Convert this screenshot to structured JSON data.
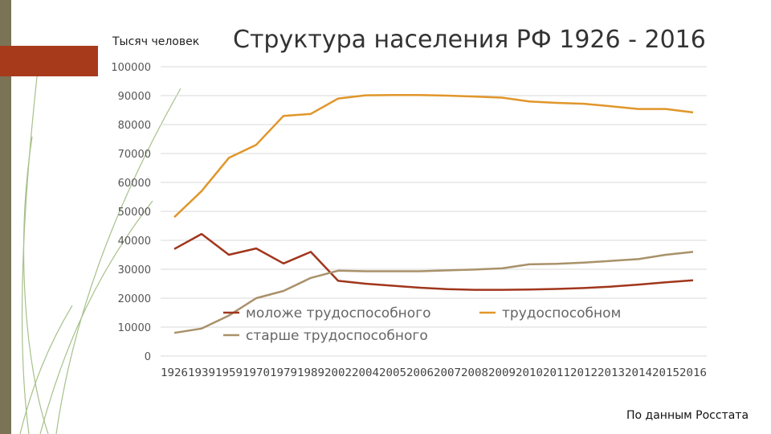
{
  "colors": {
    "sidebar": "#7a7355",
    "accent": "#a83a1c",
    "decor": "#a7c08a"
  },
  "unit_label": "Тысяч человек",
  "footer": {
    "source": "По данным Росстата"
  },
  "chart_data": {
    "type": "line",
    "title": "Структура населения РФ 1926 - 2016",
    "xlabel": "",
    "ylabel": "Тысяч человек",
    "categories": [
      "1926",
      "1939",
      "1959",
      "1970",
      "1979",
      "1989",
      "2002",
      "2004",
      "2005",
      "2006",
      "2007",
      "2008",
      "2009",
      "2010",
      "2011",
      "2012",
      "2013",
      "2014",
      "2015",
      "2016"
    ],
    "ylim": [
      0,
      100000
    ],
    "yticks": [
      0,
      10000,
      20000,
      30000,
      40000,
      50000,
      60000,
      70000,
      80000,
      90000,
      100000
    ],
    "grid": true,
    "legend_position": "bottom-center",
    "series": [
      {
        "name": "моложе трудоспособного",
        "color": "#a0361c",
        "values": [
          37000,
          42200,
          35000,
          37200,
          32000,
          36000,
          26000,
          25000,
          24300,
          23600,
          23100,
          22900,
          22900,
          23000,
          23200,
          23500,
          24000,
          24700,
          25500,
          26200
        ]
      },
      {
        "name": "трудоспособном",
        "color": "#e0962a",
        "values": [
          48000,
          57000,
          68500,
          73000,
          83000,
          83700,
          89000,
          90100,
          90200,
          90200,
          90000,
          89700,
          89300,
          88000,
          87500,
          87200,
          86300,
          85400,
          85400,
          84200
        ]
      },
      {
        "name": "старше трудоспособного",
        "color": "#a9916a",
        "values": [
          8000,
          9500,
          14000,
          20000,
          22500,
          27000,
          29500,
          29300,
          29300,
          29300,
          29600,
          29900,
          30300,
          31700,
          31900,
          32300,
          32900,
          33500,
          35000,
          36000
        ]
      }
    ]
  }
}
